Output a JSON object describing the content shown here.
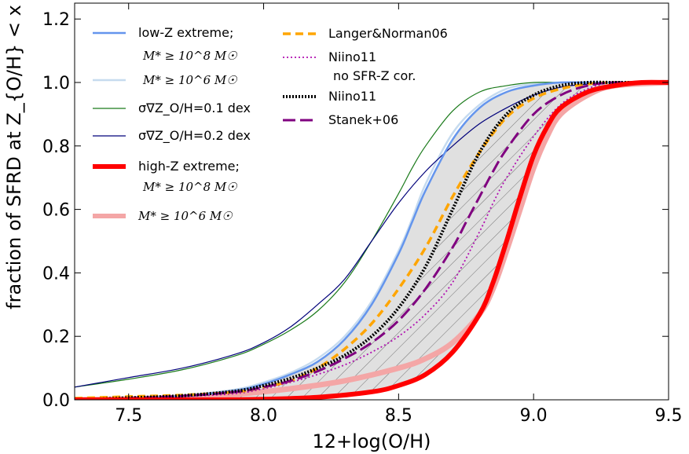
{
  "chart_data": {
    "type": "line",
    "title": "",
    "xlabel": "12+log(O/H)",
    "ylabel": "fraction of SFRD at Z_{O/H} < x",
    "xlim": [
      7.3,
      9.5
    ],
    "ylim": [
      0.0,
      1.25
    ],
    "xticks": [
      7.5,
      8.0,
      8.5,
      9.0,
      9.5
    ],
    "xtick_labels": [
      "7.5",
      "8.0",
      "8.5",
      "9.0",
      "9.5"
    ],
    "yticks": [
      0.0,
      0.2,
      0.4,
      0.6,
      0.8,
      1.0,
      1.2
    ],
    "ytick_labels": [
      "0.0",
      "0.2",
      "0.4",
      "0.6",
      "0.8",
      "1.0",
      "1.2"
    ],
    "shaded_region": {
      "between": [
        "low-Z extreme; M* >= 10^8 Msun",
        "high-Z extreme; M* >= 10^8 Msun"
      ],
      "color": "#e0e0e0"
    },
    "hatched_region": {
      "between": [
        "Niino11",
        "high-Z extreme; M* >= 10^8 Msun"
      ],
      "hatch": "diagonal"
    },
    "series": [
      {
        "name": "low-Z extreme; M* >= 10^8 Msun",
        "color": "#6495ed",
        "width": 2.5,
        "dash": "solid",
        "x": [
          7.3,
          7.5,
          7.7,
          7.9,
          8.0,
          8.1,
          8.2,
          8.3,
          8.4,
          8.5,
          8.55,
          8.6,
          8.7,
          8.8,
          8.9,
          9.0,
          9.1,
          9.2,
          9.3,
          9.5
        ],
        "y": [
          0.0,
          0.005,
          0.012,
          0.03,
          0.05,
          0.08,
          0.12,
          0.19,
          0.3,
          0.46,
          0.56,
          0.66,
          0.82,
          0.92,
          0.97,
          0.99,
          1.0,
          1.0,
          1.0,
          1.0
        ]
      },
      {
        "name": "M* >= 10^6 Msun (low-Z)",
        "color": "#c6dbef",
        "width": 2.5,
        "dash": "solid",
        "x": [
          7.3,
          7.5,
          7.7,
          7.9,
          8.0,
          8.1,
          8.2,
          8.3,
          8.4,
          8.5,
          8.55,
          8.6,
          8.7,
          8.8,
          8.9,
          9.0,
          9.1,
          9.2,
          9.5
        ],
        "y": [
          0.0,
          0.006,
          0.014,
          0.033,
          0.055,
          0.085,
          0.13,
          0.2,
          0.31,
          0.47,
          0.57,
          0.68,
          0.84,
          0.93,
          0.98,
          0.995,
          1.0,
          1.0,
          1.0
        ]
      },
      {
        "name": "sigma_grad Z_O/H = 0.1 dex",
        "color": "#1a7a1a",
        "width": 1.2,
        "dash": "solid",
        "x": [
          7.3,
          7.5,
          7.7,
          7.9,
          8.0,
          8.1,
          8.2,
          8.3,
          8.4,
          8.5,
          8.55,
          8.6,
          8.7,
          8.8,
          8.9,
          9.0,
          9.1,
          9.2,
          9.5
        ],
        "y": [
          0.04,
          0.065,
          0.095,
          0.14,
          0.175,
          0.22,
          0.28,
          0.37,
          0.5,
          0.65,
          0.73,
          0.8,
          0.91,
          0.97,
          0.99,
          1.0,
          1.0,
          1.0,
          1.0
        ]
      },
      {
        "name": "sigma_grad Z_O/H = 0.2 dex",
        "color": "#00007a",
        "width": 1.2,
        "dash": "solid",
        "x": [
          7.3,
          7.5,
          7.7,
          7.9,
          8.0,
          8.1,
          8.2,
          8.3,
          8.4,
          8.5,
          8.6,
          8.7,
          8.8,
          8.9,
          9.0,
          9.1,
          9.2,
          9.3,
          9.5
        ],
        "y": [
          0.04,
          0.07,
          0.1,
          0.145,
          0.18,
          0.23,
          0.3,
          0.38,
          0.5,
          0.62,
          0.72,
          0.8,
          0.87,
          0.92,
          0.96,
          0.985,
          0.995,
          1.0,
          1.0
        ]
      },
      {
        "name": "high-Z extreme; M* >= 10^8 Msun",
        "color": "#ff0000",
        "width": 6,
        "dash": "solid",
        "x": [
          7.3,
          7.8,
          8.0,
          8.2,
          8.4,
          8.5,
          8.6,
          8.7,
          8.8,
          8.85,
          8.9,
          8.95,
          9.0,
          9.05,
          9.1,
          9.2,
          9.3,
          9.4,
          9.5
        ],
        "y": [
          0.0,
          0.0,
          0.002,
          0.008,
          0.025,
          0.045,
          0.08,
          0.15,
          0.27,
          0.37,
          0.5,
          0.64,
          0.77,
          0.86,
          0.92,
          0.97,
          0.99,
          1.0,
          1.0
        ]
      },
      {
        "name": "M* >= 10^6 Msun (high-Z)",
        "color": "#f4a6a6",
        "width": 7,
        "dash": "solid",
        "x": [
          7.3,
          7.5,
          7.7,
          7.9,
          8.1,
          8.3,
          8.5,
          8.6,
          8.7,
          8.8,
          8.85,
          8.9,
          8.95,
          9.0,
          9.05,
          9.1,
          9.2,
          9.3,
          9.5
        ],
        "y": [
          0.0,
          0.003,
          0.008,
          0.018,
          0.035,
          0.06,
          0.1,
          0.13,
          0.18,
          0.27,
          0.35,
          0.47,
          0.6,
          0.73,
          0.83,
          0.9,
          0.96,
          0.99,
          1.0
        ]
      },
      {
        "name": "Langer&Norman06",
        "color": "#ffa500",
        "width": 3.5,
        "dash": "10,6",
        "x": [
          7.3,
          7.5,
          7.7,
          7.9,
          8.0,
          8.1,
          8.2,
          8.3,
          8.4,
          8.5,
          8.6,
          8.7,
          8.8,
          8.9,
          9.0,
          9.1,
          9.2,
          9.3,
          9.5
        ],
        "y": [
          0.005,
          0.01,
          0.015,
          0.025,
          0.04,
          0.06,
          0.1,
          0.16,
          0.24,
          0.35,
          0.48,
          0.64,
          0.78,
          0.89,
          0.95,
          0.98,
          0.995,
          1.0,
          1.0
        ]
      },
      {
        "name": "Niino11 no SFR-Z cor.",
        "color": "#b010b0",
        "width": 1.8,
        "dash": "2,3",
        "x": [
          7.3,
          7.5,
          7.7,
          7.9,
          8.0,
          8.1,
          8.2,
          8.3,
          8.4,
          8.5,
          8.6,
          8.7,
          8.8,
          8.85,
          8.9,
          9.0,
          9.1,
          9.2,
          9.3,
          9.5
        ],
        "y": [
          0.0,
          0.004,
          0.01,
          0.02,
          0.035,
          0.055,
          0.08,
          0.11,
          0.15,
          0.2,
          0.27,
          0.37,
          0.53,
          0.62,
          0.7,
          0.83,
          0.93,
          0.98,
          1.0,
          1.0
        ]
      },
      {
        "name": "Niino11",
        "color": "#000000",
        "width": 4,
        "dash": "2,2",
        "x": [
          7.3,
          7.5,
          7.7,
          7.9,
          8.0,
          8.1,
          8.2,
          8.3,
          8.4,
          8.5,
          8.6,
          8.7,
          8.8,
          8.9,
          9.0,
          9.1,
          9.2,
          9.3,
          9.5
        ],
        "y": [
          0.0,
          0.006,
          0.013,
          0.028,
          0.045,
          0.068,
          0.1,
          0.14,
          0.2,
          0.29,
          0.42,
          0.6,
          0.78,
          0.9,
          0.96,
          0.99,
          1.0,
          1.0,
          1.0
        ]
      },
      {
        "name": "Stanek+06",
        "color": "#800080",
        "width": 3,
        "dash": "16,6",
        "x": [
          7.3,
          7.5,
          7.7,
          7.9,
          8.0,
          8.1,
          8.2,
          8.3,
          8.4,
          8.5,
          8.6,
          8.7,
          8.75,
          8.8,
          8.85,
          8.9,
          9.0,
          9.1,
          9.2,
          9.3,
          9.5
        ],
        "y": [
          0.0,
          0.005,
          0.012,
          0.025,
          0.04,
          0.06,
          0.09,
          0.13,
          0.18,
          0.25,
          0.35,
          0.48,
          0.56,
          0.64,
          0.72,
          0.79,
          0.9,
          0.96,
          0.99,
          1.0,
          1.0
        ]
      }
    ],
    "legend": {
      "placement": "top-left",
      "entries": [
        {
          "label": "low-Z extreme;",
          "sub": "M* ≥ 10^8 M☉",
          "series": 0
        },
        {
          "label": "",
          "sub": "M* ≥ 10^6 M☉",
          "series": 1
        },
        {
          "label": "σ∇Z_O/H=0.1 dex",
          "sub": "",
          "series": 2
        },
        {
          "label": "σ∇Z_O/H=0.2 dex",
          "sub": "",
          "series": 3
        },
        {
          "label": "high-Z extreme;",
          "sub": "M* ≥ 10^8 M☉",
          "series": 4
        },
        {
          "label": "M* ≥ 10^6 M☉",
          "sub": "",
          "series": 5
        },
        {
          "label": "Langer&Norman06",
          "sub": "",
          "series": 6
        },
        {
          "label": "Niino11",
          "sub": "no SFR-Z cor.",
          "series": 7
        },
        {
          "label": "Niino11",
          "sub": "",
          "series": 8
        },
        {
          "label": "Stanek+06",
          "sub": "",
          "series": 9
        }
      ]
    }
  }
}
